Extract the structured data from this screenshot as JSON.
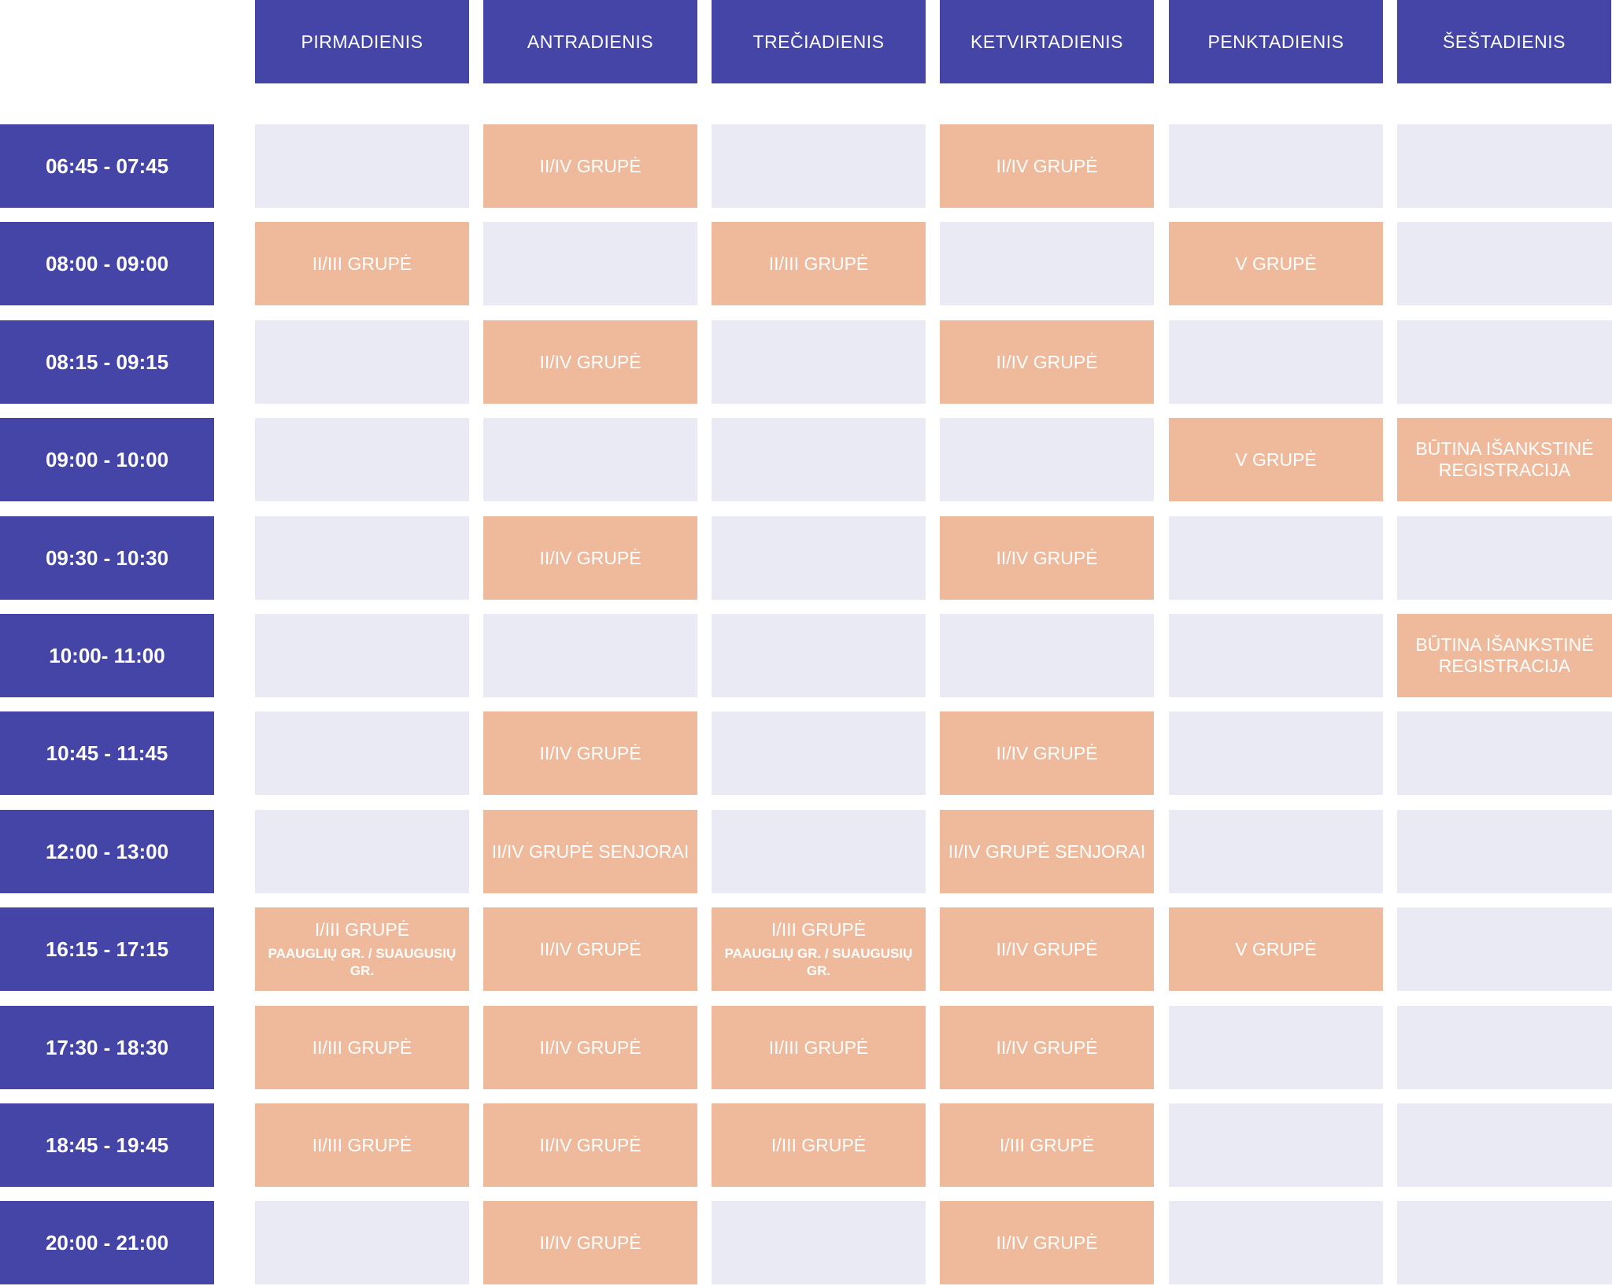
{
  "colors": {
    "header": "#4545a8",
    "class_cell": "#efb99b",
    "empty_cell": "#eaeaf4",
    "text": "#ffffff"
  },
  "days": [
    "PIRMADIENIS",
    "ANTRADIENIS",
    "TREČIADIENIS",
    "KETVIRTADIENIS",
    "PENKTADIENIS",
    "ŠEŠTADIENIS"
  ],
  "rows": [
    {
      "time": "06:45 - 07:45",
      "cells": [
        null,
        "II/IV GRUPĖ",
        null,
        "II/IV GRUPĖ",
        null,
        null
      ]
    },
    {
      "time": "08:00 - 09:00",
      "cells": [
        "II/III GRUPĖ",
        null,
        "II/III GRUPĖ",
        null,
        "V GRUPĖ",
        null
      ]
    },
    {
      "time": "08:15 - 09:15",
      "cells": [
        null,
        "II/IV GRUPĖ",
        null,
        "II/IV GRUPĖ",
        null,
        null
      ]
    },
    {
      "time": "09:00 - 10:00",
      "cells": [
        null,
        null,
        null,
        null,
        "V GRUPĖ",
        "BŪTINA IŠANKSTINĖ REGISTRACIJA"
      ]
    },
    {
      "time": "09:30 - 10:30",
      "cells": [
        null,
        "II/IV GRUPĖ",
        null,
        "II/IV GRUPĖ",
        null,
        null
      ]
    },
    {
      "time": "10:00- 11:00",
      "cells": [
        null,
        null,
        null,
        null,
        null,
        "BŪTINA IŠANKSTINĖ REGISTRACIJA"
      ]
    },
    {
      "time": "10:45 - 11:45",
      "cells": [
        null,
        "II/IV GRUPĖ",
        null,
        "II/IV GRUPĖ",
        null,
        null
      ]
    },
    {
      "time": "12:00 - 13:00",
      "cells": [
        null,
        "II/IV GRUPĖ SENJORAI",
        null,
        "II/IV GRUPĖ SENJORAI",
        null,
        null
      ]
    },
    {
      "time": "16:15 - 17:15",
      "cells": [
        {
          "label": "I/III GRUPĖ",
          "sub": "PAAUGLIŲ GR. / SUAUGUSIŲ GR."
        },
        "II/IV GRUPĖ",
        {
          "label": "I/III GRUPĖ",
          "sub": "PAAUGLIŲ GR. / SUAUGUSIŲ GR."
        },
        "II/IV GRUPĖ",
        "V GRUPĖ",
        null
      ]
    },
    {
      "time": "17:30 - 18:30",
      "cells": [
        "II/III GRUPĖ",
        "II/IV GRUPĖ",
        "II/III GRUPĖ",
        "II/IV GRUPĖ",
        null,
        null
      ]
    },
    {
      "time": "18:45 - 19:45",
      "cells": [
        "II/III GRUPĖ",
        "II/IV GRUPĖ",
        "I/III GRUPĖ",
        "I/III GRUPĖ",
        null,
        null
      ]
    },
    {
      "time": "20:00 - 21:00",
      "cells": [
        null,
        "II/IV GRUPĖ",
        null,
        "II/IV GRUPĖ",
        null,
        null
      ]
    }
  ]
}
